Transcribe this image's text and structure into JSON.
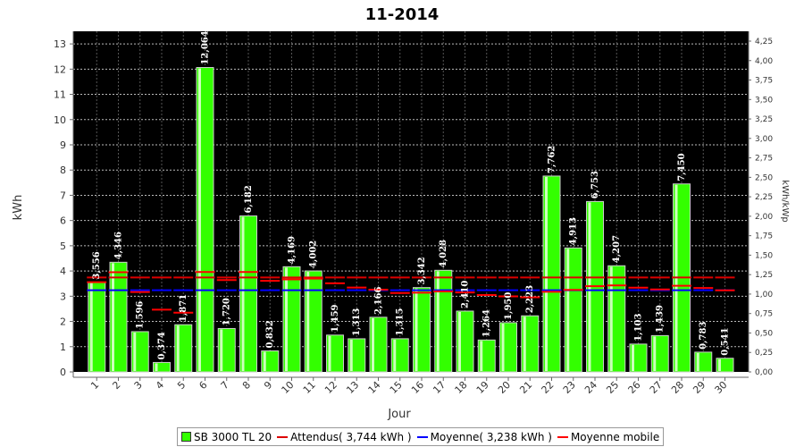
{
  "chart_data": {
    "type": "bar",
    "title": "11-2014",
    "xlabel": "Jour",
    "ylabel": "kWh",
    "y2label": "kWh/kWp",
    "ylim": [
      0,
      13.5
    ],
    "y2lim": [
      0,
      4.25
    ],
    "grid": true,
    "legend_position": "bottom",
    "yticks": [
      "0",
      "1",
      "2",
      "3",
      "4",
      "5",
      "6",
      "7",
      "8",
      "9",
      "10",
      "11",
      "12",
      "13"
    ],
    "y2ticks": [
      "0,00",
      "0,25",
      "0,50",
      "0,75",
      "1,00",
      "1,25",
      "1,50",
      "1,75",
      "2,00",
      "2,25",
      "2,50",
      "2,75",
      "3,00",
      "3,25",
      "3,50",
      "3,75",
      "4,00",
      "4,25"
    ],
    "categories": [
      "1",
      "2",
      "3",
      "4",
      "5",
      "6",
      "7",
      "8",
      "9",
      "10",
      "11",
      "12",
      "13",
      "14",
      "15",
      "16",
      "17",
      "18",
      "19",
      "20",
      "21",
      "22",
      "23",
      "24",
      "25",
      "26",
      "27",
      "28",
      "29",
      "30"
    ],
    "series": [
      {
        "name": "SB 3000 TL 20",
        "kind": "bar",
        "color": "#33ff00",
        "values": [
          3.556,
          4.346,
          1.596,
          0.374,
          1.871,
          12.064,
          1.72,
          6.182,
          0.832,
          4.169,
          4.002,
          1.459,
          1.313,
          2.166,
          1.315,
          3.342,
          4.028,
          2.41,
          1.264,
          1.95,
          2.223,
          7.762,
          4.913,
          6.753,
          4.207,
          1.103,
          1.439,
          7.45,
          0.783,
          0.541
        ],
        "labels": [
          "3,556",
          "4,346",
          "1,596",
          "0,374",
          "1,871",
          "12,064",
          "1,720",
          "6,182",
          "0,832",
          "4,169",
          "4,002",
          "1,459",
          "1,313",
          "2,166",
          "1,315",
          "3,342",
          "4,028",
          "2,410",
          "1,264",
          "1,950",
          "2,223",
          "7,762",
          "4,913",
          "6,753",
          "4,207",
          "1,103",
          "1,439",
          "7,450",
          "0,783",
          "0,541"
        ]
      },
      {
        "name": "Attendus( 3,744 kWh )",
        "kind": "line",
        "color": "#dd0000",
        "value": 3.744
      },
      {
        "name": "Moyenne( 3,238 kWh )",
        "kind": "line",
        "color": "#0000ff",
        "value": 3.238
      },
      {
        "name": "Moyenne mobile",
        "kind": "step",
        "color": "#ff0000",
        "values": [
          3.556,
          3.951,
          3.166,
          2.468,
          2.349,
          3.961,
          3.641,
          3.959,
          3.611,
          3.667,
          3.697,
          3.511,
          3.342,
          3.258,
          3.128,
          3.141,
          3.191,
          3.148,
          3.049,
          2.994,
          2.957,
          3.175,
          3.251,
          3.397,
          3.429,
          3.339,
          3.268,
          3.417,
          3.326,
          3.233
        ]
      }
    ]
  },
  "legend": {
    "items": [
      {
        "label": "SB 3000 TL 20",
        "type": "box",
        "color": "#33ff00"
      },
      {
        "label": "Attendus( 3,744 kWh )",
        "type": "line",
        "color": "#dd0000"
      },
      {
        "label": "Moyenne( 3,238 kWh )",
        "type": "line",
        "color": "#0000ff"
      },
      {
        "label": "Moyenne mobile",
        "type": "line",
        "color": "#ff0000"
      }
    ]
  }
}
